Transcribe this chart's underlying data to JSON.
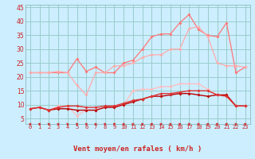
{
  "xlabel": "Vent moyen/en rafales ( km/h )",
  "background_color": "#cceeff",
  "grid_color": "#99cccc",
  "x": [
    0,
    1,
    2,
    3,
    4,
    5,
    6,
    7,
    8,
    9,
    10,
    11,
    12,
    13,
    14,
    15,
    16,
    17,
    18,
    19,
    20,
    21,
    22,
    23
  ],
  "series": [
    {
      "name": "line1_salmon",
      "color": "#ff7777",
      "lw": 0.9,
      "marker": "D",
      "ms": 2.0,
      "y": [
        21.5,
        21.5,
        21.5,
        21.5,
        21.5,
        26.5,
        22.0,
        23.5,
        21.5,
        21.5,
        25.0,
        26.0,
        30.0,
        34.5,
        35.5,
        35.5,
        39.5,
        42.5,
        37.0,
        35.0,
        34.5,
        39.5,
        21.5,
        23.5
      ]
    },
    {
      "name": "line2_pink",
      "color": "#ffaaaa",
      "lw": 0.9,
      "marker": "D",
      "ms": 2.0,
      "y": [
        21.5,
        21.5,
        21.5,
        22.0,
        21.5,
        17.0,
        13.5,
        21.5,
        21.5,
        24.0,
        24.0,
        25.0,
        27.0,
        28.0,
        28.0,
        30.0,
        30.0,
        37.5,
        38.0,
        34.5,
        25.0,
        24.0,
        24.0,
        23.5
      ]
    },
    {
      "name": "line3_light",
      "color": "#ffbbbb",
      "lw": 0.9,
      "marker": "D",
      "ms": 2.0,
      "y": [
        8.5,
        9.0,
        8.0,
        9.5,
        9.5,
        6.0,
        8.0,
        8.0,
        9.0,
        9.5,
        10.0,
        15.0,
        15.5,
        15.5,
        16.5,
        16.5,
        17.5,
        17.5,
        17.5,
        15.5,
        13.5,
        13.5,
        9.5,
        9.5
      ]
    },
    {
      "name": "line4_dark",
      "color": "#bb0000",
      "lw": 1.0,
      "marker": "D",
      "ms": 2.0,
      "y": [
        8.5,
        9.0,
        8.0,
        8.5,
        8.5,
        8.0,
        8.0,
        8.0,
        9.0,
        9.0,
        10.0,
        11.0,
        12.0,
        13.0,
        13.0,
        13.5,
        14.0,
        14.0,
        13.5,
        13.0,
        13.5,
        13.5,
        9.5,
        9.5
      ]
    },
    {
      "name": "line5_mid",
      "color": "#dd3333",
      "lw": 1.0,
      "marker": "D",
      "ms": 2.0,
      "y": [
        8.5,
        9.0,
        8.0,
        9.0,
        9.5,
        9.5,
        9.0,
        9.0,
        9.5,
        9.5,
        10.5,
        11.5,
        12.0,
        13.0,
        14.0,
        14.0,
        14.5,
        15.0,
        15.0,
        15.0,
        13.5,
        13.0,
        9.5,
        9.5
      ]
    }
  ],
  "ylim": [
    3,
    46
  ],
  "xlim": [
    -0.5,
    23.5
  ],
  "yticks": [
    5,
    10,
    15,
    20,
    25,
    30,
    35,
    40,
    45
  ],
  "xticks": [
    0,
    1,
    2,
    3,
    4,
    5,
    6,
    7,
    8,
    9,
    10,
    11,
    12,
    13,
    14,
    15,
    16,
    17,
    18,
    19,
    20,
    21,
    22,
    23
  ],
  "arrow_color": "#cc2222",
  "tick_color": "#cc2222"
}
